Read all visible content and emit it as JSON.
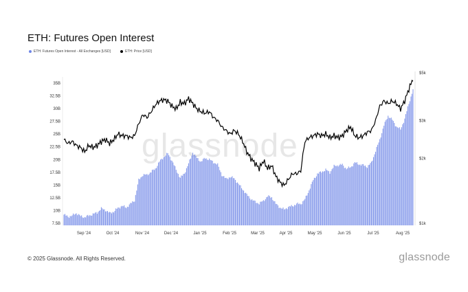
{
  "title": "ETH: Futures Open Interest",
  "legend": [
    {
      "label": "ETH: Futures Open Interest - All Exchanges [USD]",
      "color": "#6f86e6"
    },
    {
      "label": "ETH: Price [USD]",
      "color": "#000000"
    }
  ],
  "footer": {
    "copyright": "© 2025 Glassnode. All Rights Reserved.",
    "logo": "glassnode"
  },
  "watermark": "glassnode",
  "chart_data": {
    "type": "bar+line",
    "x_ticks": [
      "Sep '24",
      "Oct '24",
      "Nov '24",
      "Dec '24",
      "Jan '25",
      "Feb '25",
      "Mar '25",
      "Apr '25",
      "May '25",
      "Jun '25",
      "Jul '25",
      "Aug '25"
    ],
    "y_left": {
      "ticks": [
        "7.5B",
        "10B",
        "12.5B",
        "15B",
        "17.5B",
        "20B",
        "22.5B",
        "25B",
        "27.5B",
        "30B",
        "32.5B",
        "35B"
      ],
      "range": [
        7.5,
        36.5
      ],
      "unit": "B USD"
    },
    "y_right": {
      "ticks": [
        "$1k",
        "$2k",
        "$3k",
        "$5k"
      ],
      "values": [
        1000,
        2000,
        3000,
        5000
      ],
      "scale": "log"
    },
    "open_interest": {
      "name": "ETH: Futures Open Interest - All Exchanges [USD]",
      "color": "#6f86e6",
      "points": [
        [
          0,
          9.2
        ],
        [
          4,
          8.8
        ],
        [
          8,
          9.0
        ],
        [
          12,
          9.5
        ],
        [
          16,
          8.9
        ],
        [
          20,
          8.7
        ],
        [
          24,
          9.0
        ],
        [
          28,
          9.3
        ],
        [
          32,
          9.6
        ],
        [
          36,
          10.4
        ],
        [
          40,
          10.1
        ],
        [
          44,
          9.5
        ],
        [
          48,
          9.8
        ],
        [
          52,
          10.5
        ],
        [
          56,
          10.9
        ],
        [
          60,
          10.6
        ],
        [
          64,
          11.3
        ],
        [
          68,
          12.0
        ],
        [
          72,
          16.0
        ],
        [
          76,
          17.0
        ],
        [
          80,
          17.0
        ],
        [
          84,
          17.6
        ],
        [
          88,
          18.2
        ],
        [
          92,
          19.6
        ],
        [
          96,
          20.5
        ],
        [
          100,
          21.2
        ],
        [
          104,
          19.8
        ],
        [
          108,
          18.0
        ],
        [
          112,
          16.4
        ],
        [
          116,
          17.3
        ],
        [
          120,
          19.2
        ],
        [
          124,
          21.4
        ],
        [
          128,
          20.3
        ],
        [
          132,
          19.6
        ],
        [
          136,
          20.3
        ],
        [
          140,
          20.0
        ],
        [
          144,
          19.5
        ],
        [
          148,
          19.0
        ],
        [
          152,
          17.0
        ],
        [
          156,
          16.2
        ],
        [
          160,
          16.6
        ],
        [
          164,
          16.3
        ],
        [
          168,
          15.2
        ],
        [
          172,
          14.2
        ],
        [
          176,
          13.1
        ],
        [
          180,
          12.3
        ],
        [
          184,
          11.7
        ],
        [
          188,
          11.4
        ],
        [
          192,
          11.9
        ],
        [
          196,
          12.8
        ],
        [
          200,
          12.6
        ],
        [
          204,
          11.3
        ],
        [
          208,
          10.6
        ],
        [
          212,
          10.2
        ],
        [
          216,
          10.7
        ],
        [
          220,
          10.9
        ],
        [
          224,
          11.3
        ],
        [
          228,
          11.3
        ],
        [
          232,
          12.2
        ],
        [
          236,
          14.0
        ],
        [
          240,
          16.0
        ],
        [
          244,
          17.2
        ],
        [
          248,
          17.6
        ],
        [
          252,
          18.0
        ],
        [
          256,
          17.5
        ],
        [
          260,
          18.7
        ],
        [
          264,
          18.9
        ],
        [
          268,
          19.0
        ],
        [
          272,
          18.2
        ],
        [
          276,
          18.5
        ],
        [
          280,
          19.4
        ],
        [
          284,
          19.1
        ],
        [
          288,
          18.9
        ],
        [
          292,
          18.6
        ],
        [
          296,
          19.4
        ],
        [
          300,
          21.7
        ],
        [
          304,
          23.9
        ],
        [
          308,
          26.7
        ],
        [
          312,
          28.6
        ],
        [
          316,
          27.8
        ],
        [
          320,
          26.5
        ],
        [
          324,
          25.9
        ],
        [
          328,
          28.0
        ],
        [
          332,
          31.0
        ],
        [
          336,
          33.7
        ]
      ]
    },
    "price": {
      "name": "ETH: Price [USD]",
      "color": "#000000",
      "points": [
        [
          0,
          2450
        ],
        [
          4,
          2350
        ],
        [
          8,
          2400
        ],
        [
          12,
          2300
        ],
        [
          16,
          2250
        ],
        [
          20,
          2150
        ],
        [
          24,
          2300
        ],
        [
          28,
          2250
        ],
        [
          32,
          2300
        ],
        [
          36,
          2400
        ],
        [
          40,
          2450
        ],
        [
          44,
          2350
        ],
        [
          48,
          2450
        ],
        [
          52,
          2600
        ],
        [
          56,
          2550
        ],
        [
          60,
          2550
        ],
        [
          64,
          2500
        ],
        [
          68,
          2550
        ],
        [
          72,
          2900
        ],
        [
          76,
          3200
        ],
        [
          80,
          3100
        ],
        [
          84,
          3300
        ],
        [
          88,
          3550
        ],
        [
          92,
          3700
        ],
        [
          96,
          3750
        ],
        [
          100,
          3700
        ],
        [
          104,
          3500
        ],
        [
          108,
          3400
        ],
        [
          112,
          3650
        ],
        [
          116,
          3600
        ],
        [
          120,
          3800
        ],
        [
          124,
          3600
        ],
        [
          128,
          3400
        ],
        [
          132,
          3300
        ],
        [
          136,
          3250
        ],
        [
          140,
          3300
        ],
        [
          144,
          3100
        ],
        [
          148,
          3000
        ],
        [
          152,
          2800
        ],
        [
          156,
          2700
        ],
        [
          160,
          2600
        ],
        [
          164,
          2700
        ],
        [
          168,
          2600
        ],
        [
          172,
          2400
        ],
        [
          176,
          2150
        ],
        [
          180,
          2000
        ],
        [
          184,
          1900
        ],
        [
          188,
          1800
        ],
        [
          192,
          1950
        ],
        [
          196,
          1800
        ],
        [
          200,
          1850
        ],
        [
          204,
          1650
        ],
        [
          208,
          1550
        ],
        [
          212,
          1500
        ],
        [
          216,
          1600
        ],
        [
          220,
          1700
        ],
        [
          224,
          1700
        ],
        [
          228,
          1750
        ],
        [
          232,
          2400
        ],
        [
          236,
          2500
        ],
        [
          240,
          2550
        ],
        [
          244,
          2600
        ],
        [
          248,
          2550
        ],
        [
          252,
          2600
        ],
        [
          256,
          2500
        ],
        [
          260,
          2550
        ],
        [
          264,
          2500
        ],
        [
          268,
          2550
        ],
        [
          272,
          2700
        ],
        [
          276,
          2800
        ],
        [
          280,
          2550
        ],
        [
          284,
          2500
        ],
        [
          288,
          2550
        ],
        [
          292,
          2650
        ],
        [
          296,
          2700
        ],
        [
          300,
          3000
        ],
        [
          304,
          3500
        ],
        [
          308,
          3700
        ],
        [
          312,
          3600
        ],
        [
          316,
          3700
        ],
        [
          320,
          3600
        ],
        [
          324,
          3400
        ],
        [
          328,
          3700
        ],
        [
          332,
          4200
        ],
        [
          336,
          4700
        ]
      ]
    }
  }
}
